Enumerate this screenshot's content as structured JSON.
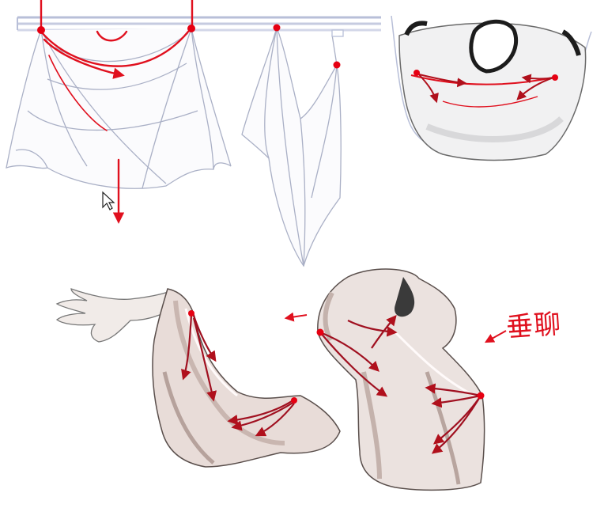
{
  "annotation": {
    "text": "垂聊"
  },
  "colors": {
    "stroke_red": "#e0101e",
    "dark_red": "#a01020",
    "pin_red": "#e60012",
    "rod": "#b8bfd8",
    "cloth_line": "#aab0c6",
    "cloth_shade": "#cdbfba",
    "skin": "#f1ebe8",
    "shirt_band": "#1c1c1c"
  },
  "icons": [
    "mouse-cursor-icon",
    "arrow-left-icon",
    "pin-icon"
  ]
}
